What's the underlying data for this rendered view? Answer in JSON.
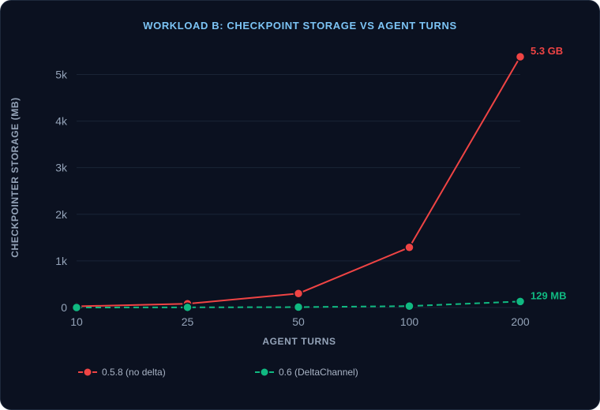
{
  "chart_data": {
    "type": "line",
    "title": "WORKLOAD B: CHECKPOINT STORAGE VS AGENT TURNS",
    "xlabel": "AGENT TURNS",
    "ylabel": "CHECKPOINTER STORAGE (MB)",
    "categories": [
      "10",
      "25",
      "50",
      "100",
      "200"
    ],
    "yticks": [
      {
        "value": 0,
        "label": "0"
      },
      {
        "value": 1000,
        "label": "1k"
      },
      {
        "value": 2000,
        "label": "2k"
      },
      {
        "value": 3000,
        "label": "3k"
      },
      {
        "value": 4000,
        "label": "4k"
      },
      {
        "value": 5000,
        "label": "5k"
      }
    ],
    "ylim": [
      0,
      5600
    ],
    "grid": true,
    "legend_position": "bottom-left",
    "series": [
      {
        "name": "0.5.8 (no delta)",
        "color": "#ef4444",
        "dashed": false,
        "values": [
          25,
          80,
          300,
          1290,
          5380
        ],
        "end_label": "5.3 GB"
      },
      {
        "name": "0.6 (DeltaChannel)",
        "color": "#10b981",
        "dashed": true,
        "values": [
          0,
          3,
          8,
          30,
          129
        ],
        "end_label": "129 MB"
      }
    ]
  }
}
